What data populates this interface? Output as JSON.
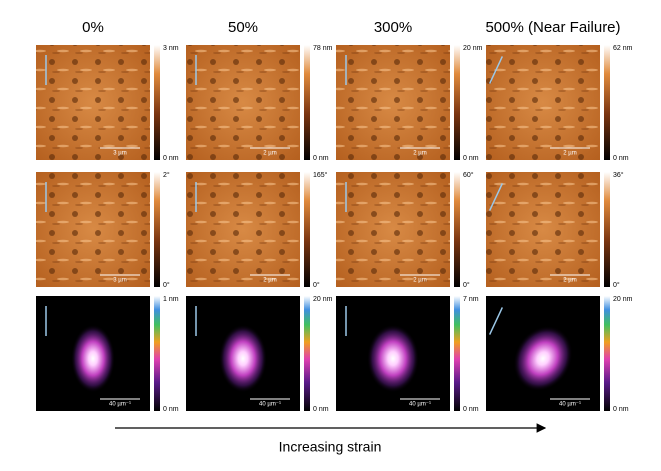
{
  "caption": "Increasing strain",
  "columns": [
    {
      "header": "0%",
      "panels": [
        {
          "max": "3 nm",
          "min": "0 nm",
          "scale": "3 µm"
        },
        {
          "max": "2°",
          "min": "0°",
          "scale": "3 µm"
        },
        {
          "max": "1 nm",
          "min": "0 nm",
          "scale": "40 µm⁻¹"
        }
      ]
    },
    {
      "header": "50%",
      "panels": [
        {
          "max": "78 nm",
          "min": "0 nm",
          "scale": "2 µm"
        },
        {
          "max": "165°",
          "min": "0°",
          "scale": "2 µm"
        },
        {
          "max": "20 nm",
          "min": "0 nm",
          "scale": "40 µm⁻¹"
        }
      ]
    },
    {
      "header": "300%",
      "panels": [
        {
          "max": "20 nm",
          "min": "0 nm",
          "scale": "2 µm"
        },
        {
          "max": "60°",
          "min": "0°",
          "scale": "2 µm"
        },
        {
          "max": "7 nm",
          "min": "0 nm",
          "scale": "40 µm⁻¹"
        }
      ]
    },
    {
      "header": "500% (Near Failure)",
      "panels": [
        {
          "max": "62 nm",
          "min": "0 nm",
          "scale": "2 µm"
        },
        {
          "max": "36°",
          "min": "0°",
          "scale": "2 µm"
        },
        {
          "max": "20 nm",
          "min": "0 nm",
          "scale": "40 µm⁻¹"
        }
      ]
    }
  ]
}
